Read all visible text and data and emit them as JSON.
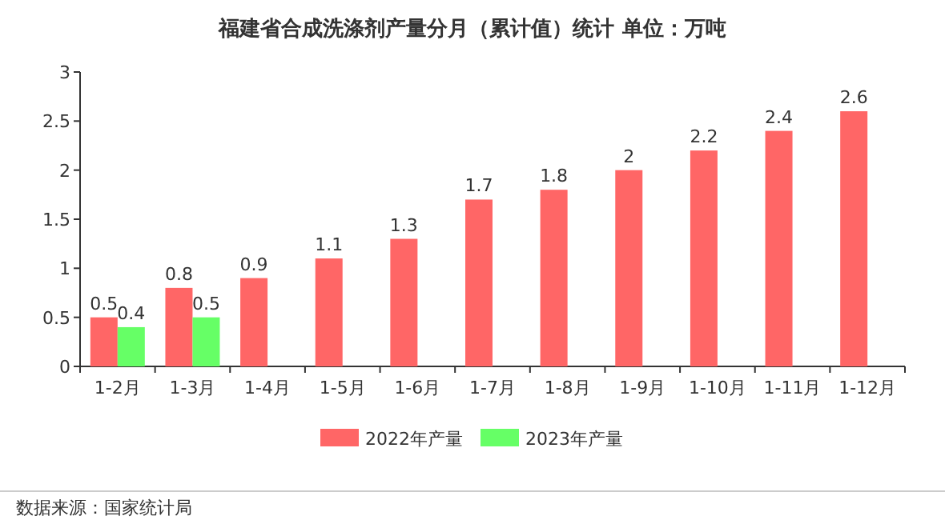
{
  "chart_data": {
    "type": "bar",
    "title": "福建省合成洗涤剂产量分月（累计值）统计  单位：万吨",
    "categories": [
      "1-2月",
      "1-3月",
      "1-4月",
      "1-5月",
      "1-6月",
      "1-7月",
      "1-8月",
      "1-9月",
      "1-10月",
      "1-11月",
      "1-12月"
    ],
    "series": [
      {
        "name": "2022年产量",
        "color": "#ff6666",
        "values": [
          0.5,
          0.8,
          0.9,
          1.1,
          1.3,
          1.7,
          1.8,
          2,
          2.2,
          2.4,
          2.6
        ]
      },
      {
        "name": "2023年产量",
        "color": "#66ff66",
        "values": [
          0.4,
          0.5,
          null,
          null,
          null,
          null,
          null,
          null,
          null,
          null,
          null
        ]
      }
    ],
    "ylim": [
      0,
      3
    ],
    "yticks": [
      0,
      0.5,
      1,
      1.5,
      2,
      2.5,
      3
    ],
    "data_labels": true,
    "legend": "bottom",
    "grid": false,
    "annotations": [
      "数据来源：国家统计局"
    ]
  }
}
